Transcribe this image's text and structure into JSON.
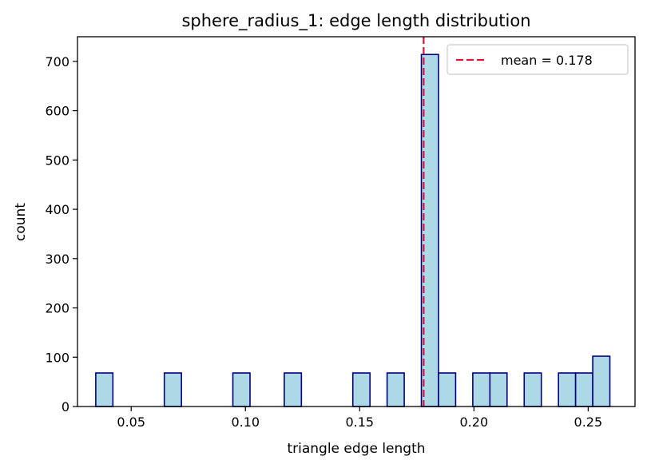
{
  "chart_data": {
    "type": "bar",
    "title": "sphere_radius_1: edge length distribution",
    "xlabel": "triangle edge length",
    "ylabel": "count",
    "xlim": [
      0.0265,
      0.2705
    ],
    "ylim": [
      0,
      750
    ],
    "x_ticks": [
      0.05,
      0.1,
      0.15,
      0.2,
      0.25
    ],
    "x_tick_labels": [
      "0.05",
      "0.10",
      "0.15",
      "0.20",
      "0.25"
    ],
    "y_ticks": [
      0,
      100,
      200,
      300,
      400,
      500,
      600,
      700
    ],
    "y_tick_labels": [
      "0",
      "100",
      "200",
      "300",
      "400",
      "500",
      "600",
      "700"
    ],
    "bin_width": 0.0075,
    "bars": [
      {
        "x": 0.0345,
        "count": 68
      },
      {
        "x": 0.0645,
        "count": 68
      },
      {
        "x": 0.0945,
        "count": 68
      },
      {
        "x": 0.117,
        "count": 68
      },
      {
        "x": 0.147,
        "count": 68
      },
      {
        "x": 0.162,
        "count": 68
      },
      {
        "x": 0.177,
        "count": 714
      },
      {
        "x": 0.1845,
        "count": 68
      },
      {
        "x": 0.1995,
        "count": 68
      },
      {
        "x": 0.207,
        "count": 68
      },
      {
        "x": 0.222,
        "count": 68
      },
      {
        "x": 0.237,
        "count": 68
      },
      {
        "x": 0.2445,
        "count": 68
      },
      {
        "x": 0.252,
        "count": 102
      }
    ],
    "mean": 0.178,
    "legend": {
      "label": "mean = 0.178",
      "placement": "upper right"
    },
    "grid": false,
    "colors": {
      "bar_fill": "#add8e6",
      "bar_edge": "#000080",
      "mean_line": "#dc143c"
    }
  }
}
